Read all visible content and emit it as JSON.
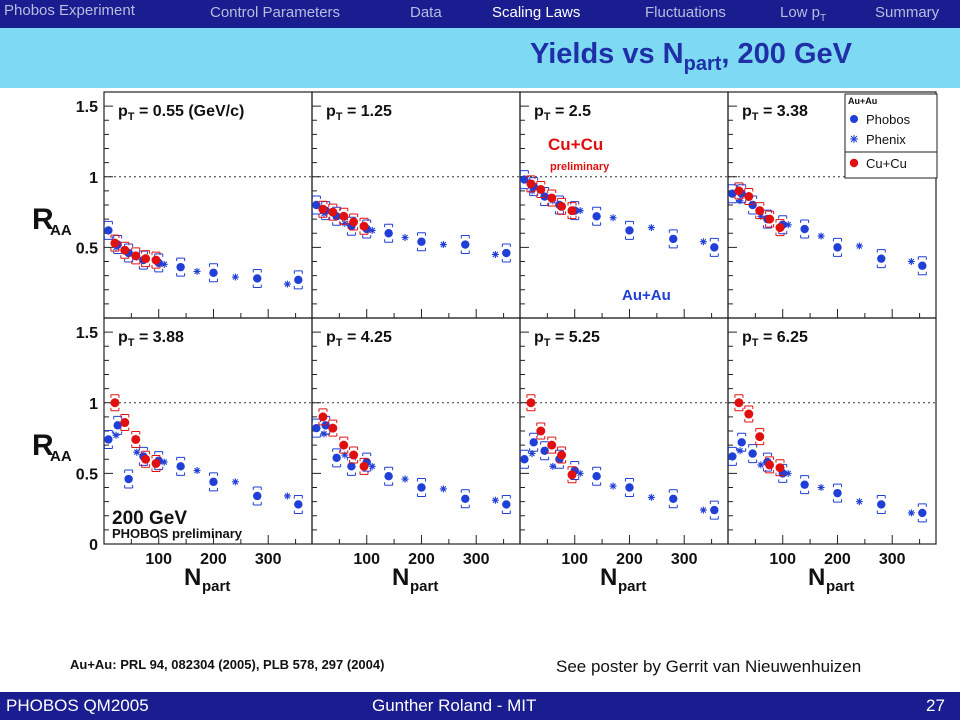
{
  "nav": {
    "title": "Phobos Experiment",
    "items": [
      "Control Parameters",
      "Data",
      "Scaling Laws",
      "Fluctuations",
      "Low pT",
      "Summary"
    ],
    "active": "Scaling Laws"
  },
  "slide_title": {
    "main": "Yields vs N",
    "sub": "part",
    "tail": ", 200 GeV"
  },
  "colors": {
    "phobos": "#1f3fd6",
    "cucu": "#e01010",
    "band": "#7ed9f2",
    "bar": "#1a1d8f"
  },
  "chart_data": {
    "type": "scatter",
    "ylabel": "RAA",
    "xlabel": "Npart",
    "ylim": [
      0,
      1.6
    ],
    "xlim": [
      0,
      380
    ],
    "yticks": [
      "0",
      "0.5",
      "1",
      "1.5"
    ],
    "xticks": [
      "100",
      "200",
      "300"
    ],
    "reference_line": 1,
    "legend": {
      "title": "Au+Au",
      "entries": [
        "Phobos",
        "Phenix",
        "Cu+Cu"
      ],
      "placement": "top-right"
    },
    "annotations": {
      "cucu": "Cu+Cu",
      "preliminary": "preliminary",
      "auau": "Au+Au",
      "energy": "200 GeV",
      "phobos_prelim": "PHOBOS preliminary"
    },
    "panels": [
      {
        "pt": "0.55 (GeV/c)",
        "phobos": [
          [
            8,
            0.62
          ],
          [
            25,
            0.52
          ],
          [
            45,
            0.46
          ],
          [
            72,
            0.41
          ],
          [
            100,
            0.39
          ],
          [
            140,
            0.36
          ],
          [
            200,
            0.32
          ],
          [
            280,
            0.28
          ],
          [
            355,
            0.27
          ]
        ],
        "phenix": [
          [
            22,
            0.5
          ],
          [
            60,
            0.43
          ],
          [
            110,
            0.38
          ],
          [
            170,
            0.33
          ],
          [
            240,
            0.29
          ],
          [
            335,
            0.24
          ]
        ],
        "cucu": [
          [
            20,
            0.53
          ],
          [
            38,
            0.48
          ],
          [
            58,
            0.44
          ],
          [
            76,
            0.42
          ],
          [
            95,
            0.41
          ]
        ]
      },
      {
        "pt": "1.25",
        "phobos": [
          [
            8,
            0.8
          ],
          [
            25,
            0.76
          ],
          [
            45,
            0.72
          ],
          [
            72,
            0.65
          ],
          [
            100,
            0.63
          ],
          [
            140,
            0.6
          ],
          [
            200,
            0.54
          ],
          [
            280,
            0.52
          ],
          [
            355,
            0.46
          ]
        ],
        "phenix": [
          [
            22,
            0.74
          ],
          [
            60,
            0.67
          ],
          [
            110,
            0.62
          ],
          [
            170,
            0.57
          ],
          [
            240,
            0.52
          ],
          [
            335,
            0.45
          ]
        ],
        "cucu": [
          [
            20,
            0.77
          ],
          [
            38,
            0.75
          ],
          [
            58,
            0.72
          ],
          [
            76,
            0.68
          ],
          [
            95,
            0.65
          ]
        ]
      },
      {
        "pt": "2.5",
        "phobos": [
          [
            8,
            0.98
          ],
          [
            25,
            0.93
          ],
          [
            45,
            0.86
          ],
          [
            72,
            0.8
          ],
          [
            100,
            0.76
          ],
          [
            140,
            0.72
          ],
          [
            200,
            0.62
          ],
          [
            280,
            0.56
          ],
          [
            355,
            0.5
          ]
        ],
        "phenix": [
          [
            22,
            0.9
          ],
          [
            60,
            0.83
          ],
          [
            110,
            0.76
          ],
          [
            170,
            0.71
          ],
          [
            240,
            0.64
          ],
          [
            335,
            0.54
          ]
        ],
        "cucu": [
          [
            20,
            0.95
          ],
          [
            38,
            0.91
          ],
          [
            58,
            0.85
          ],
          [
            76,
            0.79
          ],
          [
            95,
            0.76
          ]
        ]
      },
      {
        "pt": "3.38",
        "phobos": [
          [
            8,
            0.88
          ],
          [
            25,
            0.88
          ],
          [
            45,
            0.8
          ],
          [
            72,
            0.7
          ],
          [
            100,
            0.66
          ],
          [
            140,
            0.63
          ],
          [
            200,
            0.5
          ],
          [
            280,
            0.42
          ],
          [
            355,
            0.37
          ]
        ],
        "phenix": [
          [
            22,
            0.83
          ],
          [
            60,
            0.72
          ],
          [
            110,
            0.66
          ],
          [
            170,
            0.58
          ],
          [
            240,
            0.51
          ],
          [
            335,
            0.4
          ]
        ],
        "cucu": [
          [
            20,
            0.9
          ],
          [
            38,
            0.86
          ],
          [
            58,
            0.76
          ],
          [
            76,
            0.7
          ],
          [
            95,
            0.64
          ]
        ]
      },
      {
        "pt": "3.88",
        "phobos": [
          [
            8,
            0.74
          ],
          [
            25,
            0.84
          ],
          [
            45,
            0.46
          ],
          [
            72,
            0.62
          ],
          [
            100,
            0.59
          ],
          [
            140,
            0.55
          ],
          [
            200,
            0.44
          ],
          [
            280,
            0.34
          ],
          [
            355,
            0.28
          ]
        ],
        "phenix": [
          [
            22,
            0.77
          ],
          [
            60,
            0.65
          ],
          [
            110,
            0.58
          ],
          [
            170,
            0.52
          ],
          [
            240,
            0.44
          ],
          [
            335,
            0.34
          ]
        ],
        "cucu": [
          [
            20,
            1.0
          ],
          [
            38,
            0.86
          ],
          [
            58,
            0.74
          ],
          [
            76,
            0.6
          ],
          [
            95,
            0.57
          ]
        ]
      },
      {
        "pt": "4.25",
        "phobos": [
          [
            8,
            0.82
          ],
          [
            25,
            0.84
          ],
          [
            45,
            0.61
          ],
          [
            72,
            0.55
          ],
          [
            100,
            0.58
          ],
          [
            140,
            0.48
          ],
          [
            200,
            0.4
          ],
          [
            280,
            0.32
          ],
          [
            355,
            0.28
          ]
        ],
        "phenix": [
          [
            22,
            0.78
          ],
          [
            60,
            0.63
          ],
          [
            110,
            0.55
          ],
          [
            170,
            0.46
          ],
          [
            240,
            0.39
          ],
          [
            335,
            0.31
          ]
        ],
        "cucu": [
          [
            20,
            0.9
          ],
          [
            38,
            0.82
          ],
          [
            58,
            0.7
          ],
          [
            76,
            0.63
          ],
          [
            95,
            0.55
          ]
        ]
      },
      {
        "pt": "5.25",
        "phobos": [
          [
            8,
            0.6
          ],
          [
            25,
            0.72
          ],
          [
            45,
            0.66
          ],
          [
            72,
            0.6
          ],
          [
            100,
            0.52
          ],
          [
            140,
            0.48
          ],
          [
            200,
            0.4
          ],
          [
            280,
            0.32
          ],
          [
            355,
            0.24
          ]
        ],
        "phenix": [
          [
            22,
            0.64
          ],
          [
            60,
            0.55
          ],
          [
            110,
            0.5
          ],
          [
            170,
            0.41
          ],
          [
            240,
            0.33
          ],
          [
            335,
            0.24
          ]
        ],
        "cucu": [
          [
            20,
            1.0
          ],
          [
            38,
            0.8
          ],
          [
            58,
            0.7
          ],
          [
            76,
            0.63
          ],
          [
            95,
            0.49
          ]
        ]
      },
      {
        "pt": "6.25",
        "phobos": [
          [
            8,
            0.62
          ],
          [
            25,
            0.72
          ],
          [
            45,
            0.64
          ],
          [
            72,
            0.58
          ],
          [
            100,
            0.5
          ],
          [
            140,
            0.42
          ],
          [
            200,
            0.36
          ],
          [
            280,
            0.28
          ],
          [
            355,
            0.22
          ]
        ],
        "phenix": [
          [
            22,
            0.66
          ],
          [
            60,
            0.56
          ],
          [
            110,
            0.5
          ],
          [
            170,
            0.4
          ],
          [
            240,
            0.3
          ],
          [
            335,
            0.22
          ]
        ],
        "cucu": [
          [
            20,
            1.0
          ],
          [
            38,
            0.92
          ],
          [
            58,
            0.76
          ],
          [
            76,
            0.56
          ],
          [
            95,
            0.54
          ]
        ]
      }
    ]
  },
  "footer": {
    "reference": "Au+Au: PRL 94, 082304 (2005), PLB 578, 297 (2004)",
    "poster": "See poster by Gerrit van Nieuwenhuizen",
    "left": "PHOBOS QM2005",
    "center": "Gunther Roland - MIT",
    "page": "27"
  }
}
